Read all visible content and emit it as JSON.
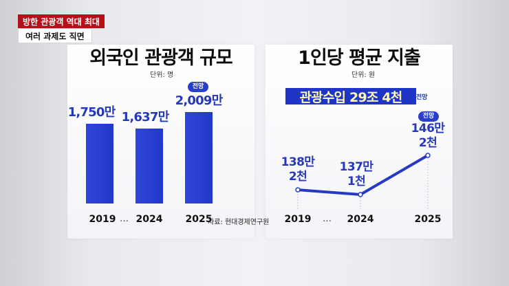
{
  "news_tags": {
    "headline": "방한 관광객 역대 최대",
    "subhead": "여러 과제도 직면"
  },
  "colors": {
    "accent": "#2a3fc8",
    "label": "#2539b8",
    "banner_text": "#fff9b6",
    "tag_red": "#b3121b"
  },
  "chart_data": [
    {
      "type": "bar",
      "title": "외국인 관광객 규모",
      "unit_label": "단위: 명",
      "categories": [
        "2019",
        "2024",
        "2025"
      ],
      "ellipsis": "…",
      "values": [
        1750,
        1637,
        2009
      ],
      "value_unit": "10k persons",
      "value_labels": [
        "1,750만",
        "1,637만",
        "2,009만"
      ],
      "forecast_badge": "전망",
      "forecast_index": 2
    },
    {
      "type": "line",
      "title": "1인당 평균 지출",
      "unit_label": "단위: 원",
      "categories": [
        "2019",
        "2024",
        "2025"
      ],
      "ellipsis": "…",
      "values": [
        1382,
        1371,
        1462
      ],
      "value_unit": "1k won",
      "value_labels": [
        {
          "line1": "138만",
          "line2": "2천"
        },
        {
          "line1": "137만",
          "line2": "1천"
        },
        {
          "line1": "146만",
          "line2": "2천"
        }
      ],
      "forecast_badge": "전망",
      "forecast_index": 2,
      "banner_text": "관광수입 29조 4천",
      "banner_note": "전망"
    }
  ],
  "source": "자료: 현대경제연구원"
}
